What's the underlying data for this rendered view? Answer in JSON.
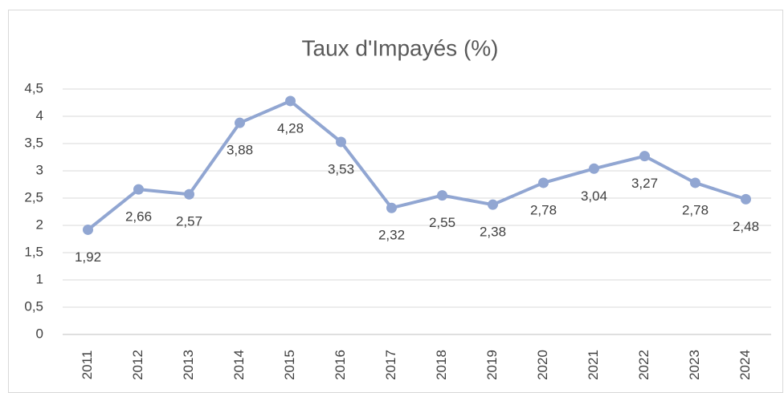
{
  "chart_data": {
    "type": "line",
    "title": "Taux d'Impayés (%)",
    "categories": [
      "2011",
      "2012",
      "2013",
      "2014",
      "2015",
      "2016",
      "2017",
      "2018",
      "2019",
      "2020",
      "2021",
      "2022",
      "2023",
      "2024"
    ],
    "values": [
      1.92,
      2.66,
      2.57,
      3.88,
      4.28,
      3.53,
      2.32,
      2.55,
      2.38,
      2.78,
      3.04,
      3.27,
      2.78,
      2.48
    ],
    "value_labels": [
      "1,92",
      "2,66",
      "2,57",
      "3,88",
      "4,28",
      "3,53",
      "2,32",
      "2,55",
      "2,38",
      "2,78",
      "3,04",
      "3,27",
      "2,78",
      "2,48"
    ],
    "color": "#91a6d2",
    "ylim": [
      0,
      4.5
    ],
    "yticks": [
      0,
      {
        "value": 0.5,
        "label": "0,5"
      },
      1,
      {
        "value": 1.5,
        "label": "1,5"
      },
      2,
      {
        "value": 2.5,
        "label": "2,5"
      },
      3,
      {
        "value": 3.5,
        "label": "3,5"
      },
      4,
      {
        "value": 4.5,
        "label": "4,5"
      }
    ],
    "grid": true
  }
}
